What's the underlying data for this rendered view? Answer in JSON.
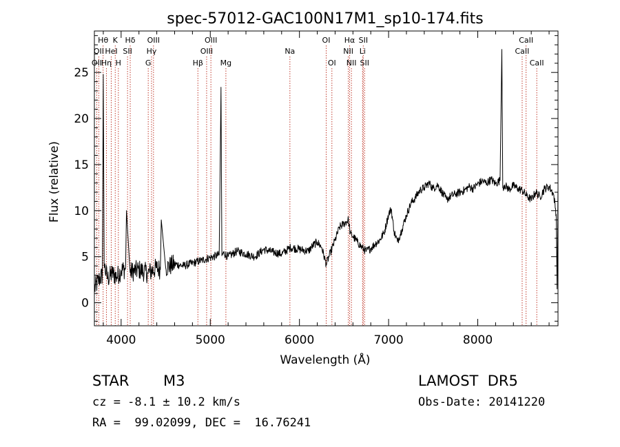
{
  "chart_data": {
    "type": "line",
    "title": "spec-57012-GAC100N17M1_sp10-174.fits",
    "xlabel": "Wavelength (Å)",
    "ylabel": "Flux (relative)",
    "xlim": [
      3700,
      8900
    ],
    "ylim": [
      -2.5,
      29.5
    ],
    "xticks": [
      4000,
      5000,
      6000,
      7000,
      8000
    ],
    "xtick_labels": [
      "4000",
      "5000",
      "6000",
      "7000",
      "8000"
    ],
    "yticks": [
      0,
      5,
      10,
      15,
      20,
      25
    ],
    "ytick_labels": [
      "0",
      "5",
      "10",
      "15",
      "20",
      "25"
    ],
    "grid": false,
    "series": [
      {
        "color": "#000000",
        "x": [
          3700,
          3750,
          3790,
          3800,
          3810,
          3850,
          3900,
          3950,
          4000,
          4050,
          4060,
          4100,
          4200,
          4300,
          4400,
          4440,
          4450,
          4500,
          4600,
          4700,
          4800,
          4900,
          5000,
          5100,
          5120,
          5130,
          5150,
          5200,
          5300,
          5400,
          5500,
          5600,
          5700,
          5800,
          5900,
          6000,
          6100,
          6150,
          6200,
          6250,
          6300,
          6350,
          6400,
          6450,
          6500,
          6550,
          6570,
          6600,
          6650,
          6700,
          6750,
          6800,
          6850,
          6900,
          6950,
          7000,
          7030,
          7060,
          7100,
          7150,
          7200,
          7250,
          7300,
          7350,
          7400,
          7450,
          7500,
          7550,
          7600,
          7650,
          7700,
          7750,
          7800,
          7850,
          7900,
          7950,
          8000,
          8050,
          8100,
          8150,
          8200,
          8250,
          8270,
          8280,
          8300,
          8350,
          8400,
          8450,
          8500,
          8550,
          8600,
          8650,
          8700,
          8750,
          8800,
          8850,
          8880,
          8890,
          8900
        ],
        "y": [
          1.5,
          2.5,
          3,
          24.8,
          4,
          2.6,
          3.2,
          2.8,
          3.5,
          3.7,
          10,
          3.3,
          3.6,
          3.2,
          3.8,
          3.6,
          9,
          3.8,
          4.2,
          4.0,
          4.3,
          4.6,
          4.9,
          5.2,
          23.4,
          5.1,
          5.4,
          5.0,
          5.6,
          5.3,
          5.0,
          5.8,
          5.5,
          5.3,
          6.0,
          5.8,
          5.6,
          6.2,
          6.6,
          6.0,
          4.2,
          5.5,
          6.8,
          8.2,
          8.6,
          9.0,
          7.5,
          7.2,
          6.6,
          6.0,
          5.6,
          5.9,
          6.4,
          6.8,
          7.6,
          9.6,
          10.2,
          7.8,
          6.6,
          8.0,
          9.5,
          10.8,
          11.4,
          12.2,
          12.5,
          13.0,
          12.4,
          12.8,
          12.0,
          11.2,
          11.6,
          11.8,
          12.0,
          12.2,
          12.6,
          12.4,
          12.9,
          13.2,
          13.0,
          13.4,
          12.9,
          13.3,
          27.5,
          12.5,
          12.8,
          12.3,
          12.7,
          12.4,
          12.2,
          11.6,
          11.2,
          12.0,
          11.5,
          12.4,
          12.6,
          11.8,
          9.6,
          1.5,
          12.6
        ]
      }
    ],
    "line_labels": [
      {
        "wavelength": 3727,
        "row": 3,
        "text": "OII"
      },
      {
        "wavelength": 3750,
        "row": 2,
        "text": "OII"
      },
      {
        "wavelength": 3798,
        "row": 1,
        "text": "Hθ"
      },
      {
        "wavelength": 3835,
        "row": 3,
        "text": "Hη"
      },
      {
        "wavelength": 3889,
        "row": 2,
        "text": "HeI"
      },
      {
        "wavelength": 3934,
        "row": 1,
        "text": "K"
      },
      {
        "wavelength": 3969,
        "row": 3,
        "text": "H"
      },
      {
        "wavelength": 4072,
        "row": 2,
        "text": "SII"
      },
      {
        "wavelength": 4102,
        "row": 1,
        "text": "Hδ"
      },
      {
        "wavelength": 4304,
        "row": 3,
        "text": "G"
      },
      {
        "wavelength": 4341,
        "row": 2,
        "text": "Hγ"
      },
      {
        "wavelength": 4363,
        "row": 1,
        "text": "OIII"
      },
      {
        "wavelength": 4861,
        "row": 3,
        "text": "Hβ"
      },
      {
        "wavelength": 4959,
        "row": 2,
        "text": "OIII"
      },
      {
        "wavelength": 5007,
        "row": 1,
        "text": "OIII"
      },
      {
        "wavelength": 5175,
        "row": 3,
        "text": "Mg"
      },
      {
        "wavelength": 5893,
        "row": 2,
        "text": "Na"
      },
      {
        "wavelength": 6300,
        "row": 1,
        "text": "OI"
      },
      {
        "wavelength": 6364,
        "row": 3,
        "text": "OI"
      },
      {
        "wavelength": 6548,
        "row": 2,
        "text": "NII"
      },
      {
        "wavelength": 6563,
        "row": 1,
        "text": "Hα"
      },
      {
        "wavelength": 6583,
        "row": 3,
        "text": "NII"
      },
      {
        "wavelength": 6708,
        "row": 2,
        "text": "Li"
      },
      {
        "wavelength": 6716,
        "row": 1,
        "text": "SII"
      },
      {
        "wavelength": 6731,
        "row": 3,
        "text": "SII"
      },
      {
        "wavelength": 8498,
        "row": 2,
        "text": "CaII"
      },
      {
        "wavelength": 8542,
        "row": 1,
        "text": "CaII"
      },
      {
        "wavelength": 8662,
        "row": 3,
        "text": "CaII"
      }
    ],
    "line_color": "#c0392b"
  },
  "info": {
    "class": "STAR",
    "subclass": "M3",
    "survey": "LAMOST  DR5",
    "redshift": "cz = -8.1 ± 10.2 km/s",
    "obs_date": "Obs-Date: 20141220",
    "coords": "RA =  99.02099, DEC =  16.76241"
  }
}
